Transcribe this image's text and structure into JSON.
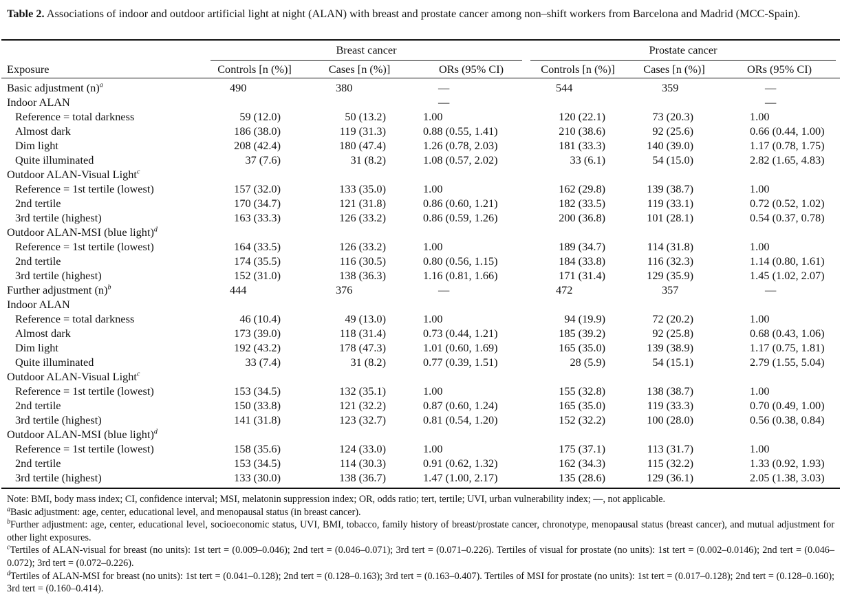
{
  "title": {
    "label": "Table 2.",
    "text": "Associations of indoor and outdoor artificial light at night (ALAN) with breast and prostate cancer among non–shift workers from Barcelona and Madrid (MCC-Spain)."
  },
  "table": {
    "groups": [
      "Breast cancer",
      "Prostate cancer"
    ],
    "columns": [
      "Exposure",
      "Controls [n (%)]",
      "Cases [n (%)]",
      "ORs (95% CI)",
      "Controls [n (%)]",
      "Cases [n (%)]",
      "ORs (95% CI)"
    ],
    "rows": [
      {
        "label": "Basic adjustment (n)",
        "sup": "a",
        "cells": [
          "490",
          "380",
          "—",
          "544",
          "359",
          "—"
        ]
      },
      {
        "label": "Indoor ALAN",
        "cells": [
          null,
          null,
          "—",
          null,
          null,
          "—"
        ],
        "items": [
          {
            "label": "Reference = total darkness",
            "cells": [
              "59 (12.0)",
              "50 (13.2)",
              "1.00",
              "120 (22.1)",
              "73 (20.3)",
              "1.00"
            ]
          },
          {
            "label": "Almost dark",
            "cells": [
              "186 (38.0)",
              "119 (31.3)",
              "0.88 (0.55, 1.41)",
              "210 (38.6)",
              "92 (25.6)",
              "0.66 (0.44, 1.00)"
            ]
          },
          {
            "label": "Dim light",
            "cells": [
              "208 (42.4)",
              "180 (47.4)",
              "1.26 (0.78, 2.03)",
              "181 (33.3)",
              "140 (39.0)",
              "1.17 (0.78, 1.75)"
            ]
          },
          {
            "label": "Quite illuminated",
            "cells": [
              "37 (7.6)",
              "31 (8.2)",
              "1.08 (0.57, 2.02)",
              "33 (6.1)",
              "54 (15.0)",
              "2.82 (1.65, 4.83)"
            ]
          }
        ]
      },
      {
        "label": "Outdoor ALAN-Visual Light",
        "sup": "c",
        "items": [
          {
            "label": "Reference = 1st tertile (lowest)",
            "cells": [
              "157 (32.0)",
              "133 (35.0)",
              "1.00",
              "162 (29.8)",
              "139 (38.7)",
              "1.00"
            ]
          },
          {
            "label": "2nd tertile",
            "cells": [
              "170 (34.7)",
              "121 (31.8)",
              "0.86 (0.60, 1.21)",
              "182 (33.5)",
              "119 (33.1)",
              "0.72 (0.52, 1.02)"
            ]
          },
          {
            "label": "3rd tertile (highest)",
            "cells": [
              "163 (33.3)",
              "126 (33.2)",
              "0.86 (0.59, 1.26)",
              "200 (36.8)",
              "101 (28.1)",
              "0.54 (0.37, 0.78)"
            ]
          }
        ]
      },
      {
        "label": "Outdoor ALAN-MSI (blue light)",
        "sup": "d",
        "items": [
          {
            "label": "Reference = 1st tertile (lowest)",
            "cells": [
              "164 (33.5)",
              "126 (33.2)",
              "1.00",
              "189 (34.7)",
              "114 (31.8)",
              "1.00"
            ]
          },
          {
            "label": "2nd tertile",
            "cells": [
              "174 (35.5)",
              "116 (30.5)",
              "0.80 (0.56, 1.15)",
              "184 (33.8)",
              "116 (32.3)",
              "1.14 (0.80, 1.61)"
            ]
          },
          {
            "label": "3rd tertile (highest)",
            "cells": [
              "152 (31.0)",
              "138 (36.3)",
              "1.16 (0.81, 1.66)",
              "171 (31.4)",
              "129 (35.9)",
              "1.45 (1.02, 2.07)"
            ]
          }
        ]
      },
      {
        "label": "Further adjustment (n)",
        "sup": "b",
        "cells": [
          "444",
          "376",
          "—",
          "472",
          "357",
          "—"
        ]
      },
      {
        "label": "Indoor ALAN",
        "items": [
          {
            "label": "Reference = total darkness",
            "cells": [
              "46 (10.4)",
              "49 (13.0)",
              "1.00",
              "94 (19.9)",
              "72 (20.2)",
              "1.00"
            ]
          },
          {
            "label": "Almost dark",
            "cells": [
              "173 (39.0)",
              "118 (31.4)",
              "0.73 (0.44, 1.21)",
              "185 (39.2)",
              "92 (25.8)",
              "0.68 (0.43, 1.06)"
            ]
          },
          {
            "label": "Dim light",
            "cells": [
              "192 (43.2)",
              "178 (47.3)",
              "1.01 (0.60, 1.69)",
              "165 (35.0)",
              "139 (38.9)",
              "1.17 (0.75, 1.81)"
            ]
          },
          {
            "label": "Quite illuminated",
            "cells": [
              "33 (7.4)",
              "31 (8.2)",
              "0.77 (0.39, 1.51)",
              "28 (5.9)",
              "54 (15.1)",
              "2.79 (1.55, 5.04)"
            ]
          }
        ]
      },
      {
        "label": "Outdoor ALAN-Visual Light",
        "sup": "c",
        "items": [
          {
            "label": "Reference = 1st tertile (lowest)",
            "cells": [
              "153 (34.5)",
              "132 (35.1)",
              "1.00",
              "155 (32.8)",
              "138 (38.7)",
              "1.00"
            ]
          },
          {
            "label": "2nd tertile",
            "cells": [
              "150 (33.8)",
              "121 (32.2)",
              "0.87 (0.60, 1.24)",
              "165 (35.0)",
              "119 (33.3)",
              "0.70 (0.49, 1.00)"
            ]
          },
          {
            "label": "3rd tertile (highest)",
            "cells": [
              "141 (31.8)",
              "123 (32.7)",
              "0.81 (0.54, 1.20)",
              "152 (32.2)",
              "100 (28.0)",
              "0.56 (0.38, 0.84)"
            ]
          }
        ]
      },
      {
        "label": "Outdoor ALAN-MSI (blue light)",
        "sup": "d",
        "items": [
          {
            "label": "Reference = 1st tertile (lowest)",
            "cells": [
              "158 (35.6)",
              "124 (33.0)",
              "1.00",
              "175 (37.1)",
              "113 (31.7)",
              "1.00"
            ]
          },
          {
            "label": "2nd tertile",
            "cells": [
              "153 (34.5)",
              "114 (30.3)",
              "0.91 (0.62, 1.32)",
              "162 (34.3)",
              "115 (32.2)",
              "1.33 (0.92, 1.93)"
            ]
          },
          {
            "label": "3rd tertile (highest)",
            "cells": [
              "133 (30.0)",
              "138 (36.7)",
              "1.47 (1.00, 2.17)",
              "135 (28.6)",
              "129 (36.1)",
              "2.05 (1.38, 3.03)"
            ]
          }
        ]
      }
    ]
  },
  "notes": {
    "note": "Note: BMI, body mass index; CI, confidence interval; MSI, melatonin suppression index; OR, odds ratio; tert, tertile; UVI, urban vulnerability index; —, not applicable.",
    "footnotes": [
      {
        "mark": "a",
        "text": "Basic adjustment: age, center, educational level, and menopausal status (in breast cancer)."
      },
      {
        "mark": "b",
        "text": "Further adjustment: age, center, educational level, socioeconomic status, UVI, BMI, tobacco, family history of breast/prostate cancer, chronotype, menopausal status (breast cancer), and mutual adjustment for other light exposures."
      },
      {
        "mark": "c",
        "text": "Tertiles of ALAN-visual for breast (no units): 1st tert = (0.009–0.046); 2nd tert = (0.046–0.071); 3rd tert = (0.071–0.226). Tertiles of visual for prostate (no units): 1st tert = (0.002–0.0146); 2nd tert = (0.046–0.072); 3rd tert = (0.072–0.226)."
      },
      {
        "mark": "d",
        "text": "Tertiles of ALAN-MSI for breast (no units): 1st tert = (0.041–0.128); 2nd tert = (0.128–0.163); 3rd tert = (0.163–0.407). Tertiles of MSI for prostate (no units): 1st tert = (0.017–0.128); 2nd tert = (0.128–0.160); 3rd tert = (0.160–0.414)."
      }
    ]
  }
}
